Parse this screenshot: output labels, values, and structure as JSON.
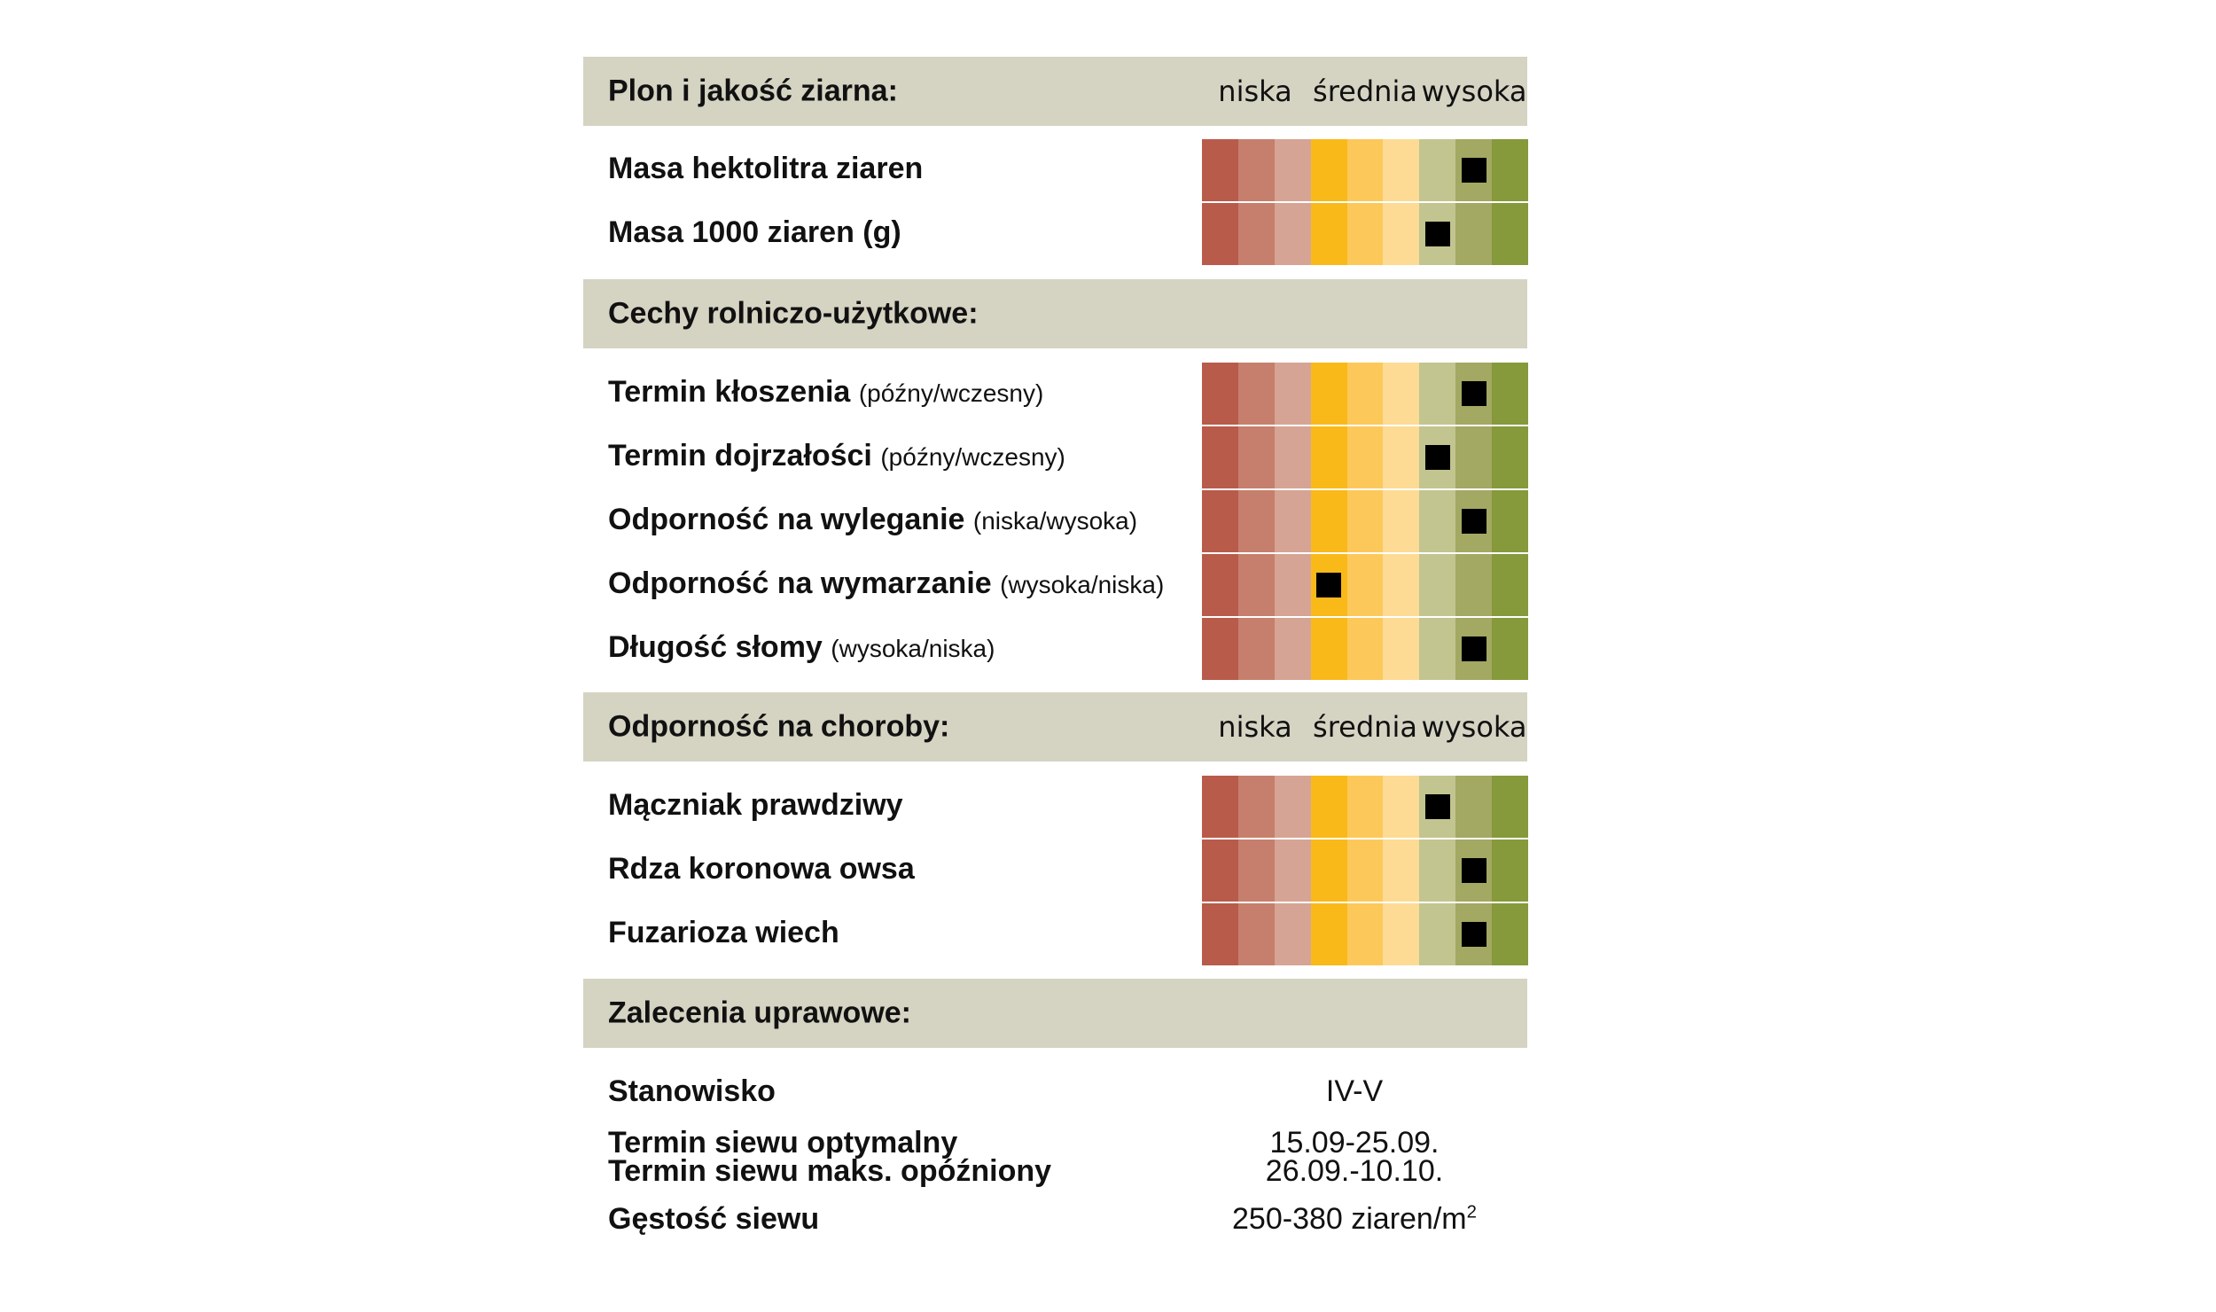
{
  "colors": {
    "header_bg": "#d5d3c2",
    "scale": [
      "#b85b4b",
      "#c67f6c",
      "#d6a494",
      "#f9b919",
      "#fdc85a",
      "#fddb94",
      "#c2c58f",
      "#a3a863",
      "#86993b"
    ],
    "marker": "#000000"
  },
  "scale_labels": {
    "low": "niska",
    "mid": "średnia",
    "high": "wysoka"
  },
  "sections": {
    "yield": {
      "title": "Plon i jakość ziarna:",
      "rows": [
        {
          "label": "Masa hektolitra ziaren",
          "note": "",
          "rating": 8
        },
        {
          "label": "Masa 1000 ziaren (g)",
          "note": "",
          "rating": 7
        }
      ]
    },
    "agronomic": {
      "title": "Cechy rolniczo-użytkowe:",
      "rows": [
        {
          "label": "Termin kłoszenia",
          "note": "(późny/wczesny)",
          "rating": 8
        },
        {
          "label": "Termin dojrzałości",
          "note": "(późny/wczesny)",
          "rating": 7
        },
        {
          "label": "Odporność na wyleganie",
          "note": "(niska/wysoka)",
          "rating": 8
        },
        {
          "label": "Odporność na wymarzanie",
          "note": "(wysoka/niska)",
          "rating": 4
        },
        {
          "label": "Długość słomy",
          "note": "(wysoka/niska)",
          "rating": 8
        }
      ]
    },
    "disease": {
      "title": "Odporność na choroby:",
      "rows": [
        {
          "label": "Mączniak prawdziwy",
          "note": "",
          "rating": 7
        },
        {
          "label": "Rdza koronowa owsa",
          "note": "",
          "rating": 8
        },
        {
          "label": "Fuzarioza wiech",
          "note": "",
          "rating": 8
        }
      ]
    },
    "recommendations": {
      "title": "Zalecenia uprawowe:",
      "items": {
        "site": {
          "label": "Stanowisko",
          "value": "IV-V"
        },
        "sowing_optimal": {
          "label": "Termin siewu optymalny",
          "value": "15.09-25.09."
        },
        "sowing_late": {
          "label": "Termin siewu maks. opóźniony",
          "value": "26.09.-10.10."
        },
        "density": {
          "label": "Gęstość siewu",
          "value": "250-380 ziaren/m",
          "unit_sup": "2"
        }
      }
    }
  }
}
